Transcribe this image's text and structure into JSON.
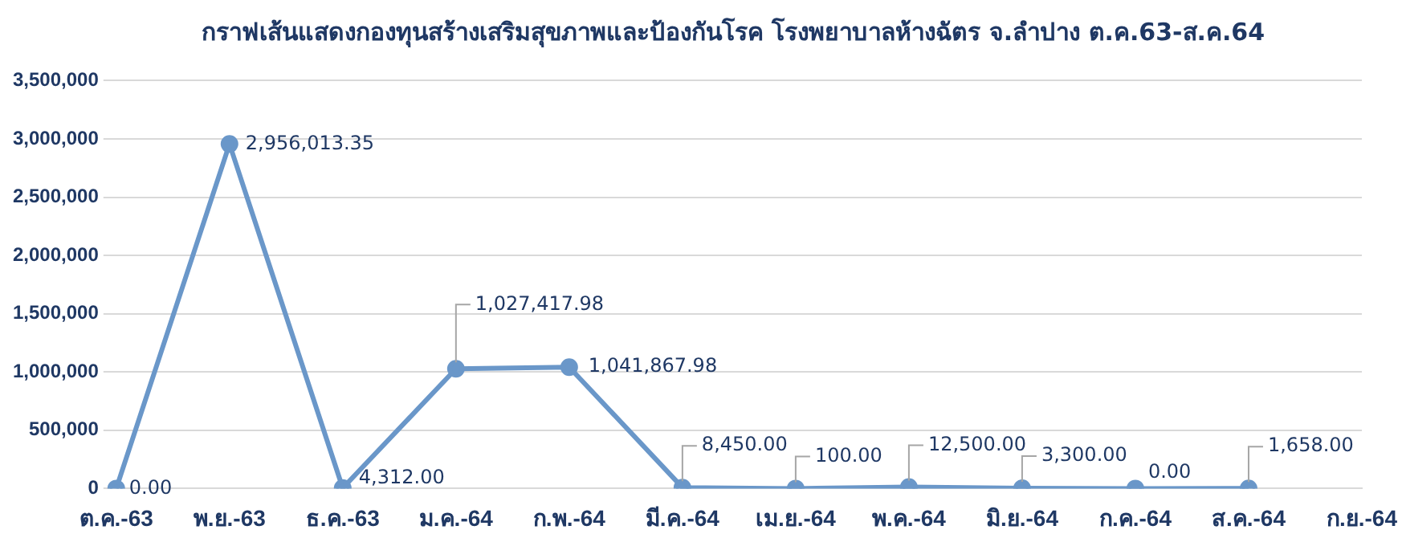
{
  "chart_data": {
    "type": "line",
    "title": "กราฟเส้นแสดงกองทุนสร้างเสริมสุขภาพและป้องกันโรค โรงพยาบาลห้างฉัตร จ.ลำปาง ต.ค.63-ส.ค.64",
    "categories": [
      "ต.ค.-63",
      "พ.ย.-63",
      "ธ.ค.-63",
      "ม.ค.-64",
      "ก.พ.-64",
      "มี.ค.-64",
      "เม.ย.-64",
      "พ.ค.-64",
      "มิ.ย.-64",
      "ก.ค.-64",
      "ส.ค.-64",
      "ก.ย.-64"
    ],
    "series": [
      {
        "color": "#6a97c9",
        "values": [
          0,
          2956013.35,
          4312,
          1027417.98,
          1041867.98,
          8450,
          100,
          12500,
          3300,
          0,
          1658,
          null
        ],
        "value_labels": [
          "0.00",
          "2,956,013.35",
          "4,312.00",
          "1,027,417.98",
          "1,041,867.98",
          "8,450.00",
          "100.00",
          "12,500.00",
          "3,300.00",
          "0.00",
          "1,658.00",
          null
        ]
      }
    ],
    "ylim": [
      0,
      3500000
    ],
    "yticks": [
      0,
      {
        "value": 500000,
        "label": "500,000"
      },
      {
        "value": 1000000,
        "label": "1,000,000"
      },
      {
        "value": 1500000,
        "label": "1,500,000"
      },
      {
        "value": 2000000,
        "label": "2,000,000"
      },
      {
        "value": 2500000,
        "label": "2,500,000"
      },
      {
        "value": 3000000,
        "label": "3,000,000"
      },
      {
        "value": 3500000,
        "label": "3,500,000"
      }
    ],
    "grid": "y",
    "legend": false,
    "marker": "circle",
    "line_style": "solid"
  }
}
